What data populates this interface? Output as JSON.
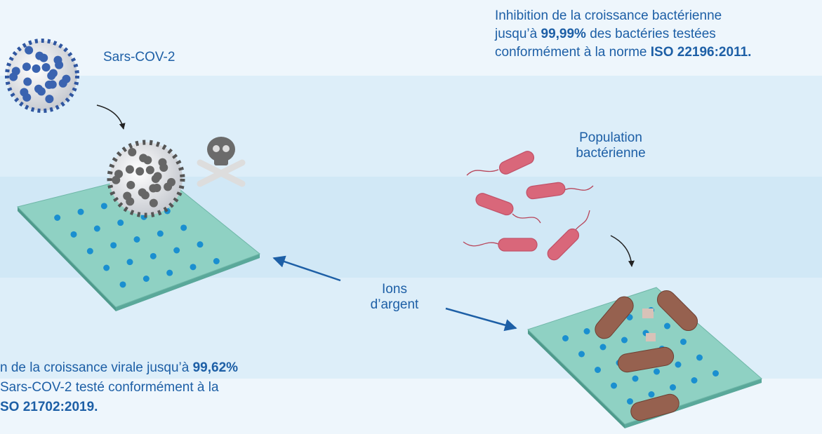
{
  "virus_label": "Sars-COV-2",
  "bacteria_label": [
    "Population",
    "bactérienne"
  ],
  "ions_label": [
    "Ions",
    "d’argent"
  ],
  "bacteria_result": [
    [
      "Inhibition de la croissance bactérienne"
    ],
    [
      "jusqu’à ",
      "99,99%",
      " des bactéries testées"
    ],
    [
      "conformément à la norme ",
      "ISO 22196:2011."
    ]
  ],
  "virus_result": [
    [
      "n de la croissance virale jusqu’à ",
      "99,62%"
    ],
    [
      " Sars-COV-2 testé conformément à la"
    ],
    [
      "SO 21702:2019."
    ]
  ]
}
